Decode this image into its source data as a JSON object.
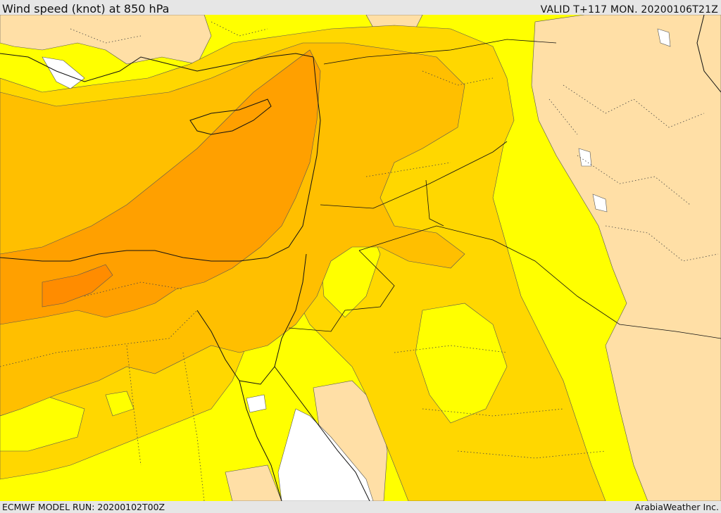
{
  "header": {
    "title": "Wind speed (knot) at 850 hPa",
    "valid": "VALID T+117 MON. 20200106T21Z"
  },
  "footer": {
    "model_run": "ECMWF MODEL RUN: 20200102T00Z",
    "credit": "ArabiaWeather Inc."
  },
  "map": {
    "field": "wind-speed-850hPa",
    "palette": {
      "lowest": "#ffffff",
      "low": "#ffdfa6",
      "moderate": "#ffff00",
      "strong": "#ffd700",
      "stronger": "#ffbf00",
      "very_strong": "#ffa000",
      "extreme": "#ff8c00"
    },
    "contour_color": "#3a3a3a",
    "border_color": "#111111"
  }
}
